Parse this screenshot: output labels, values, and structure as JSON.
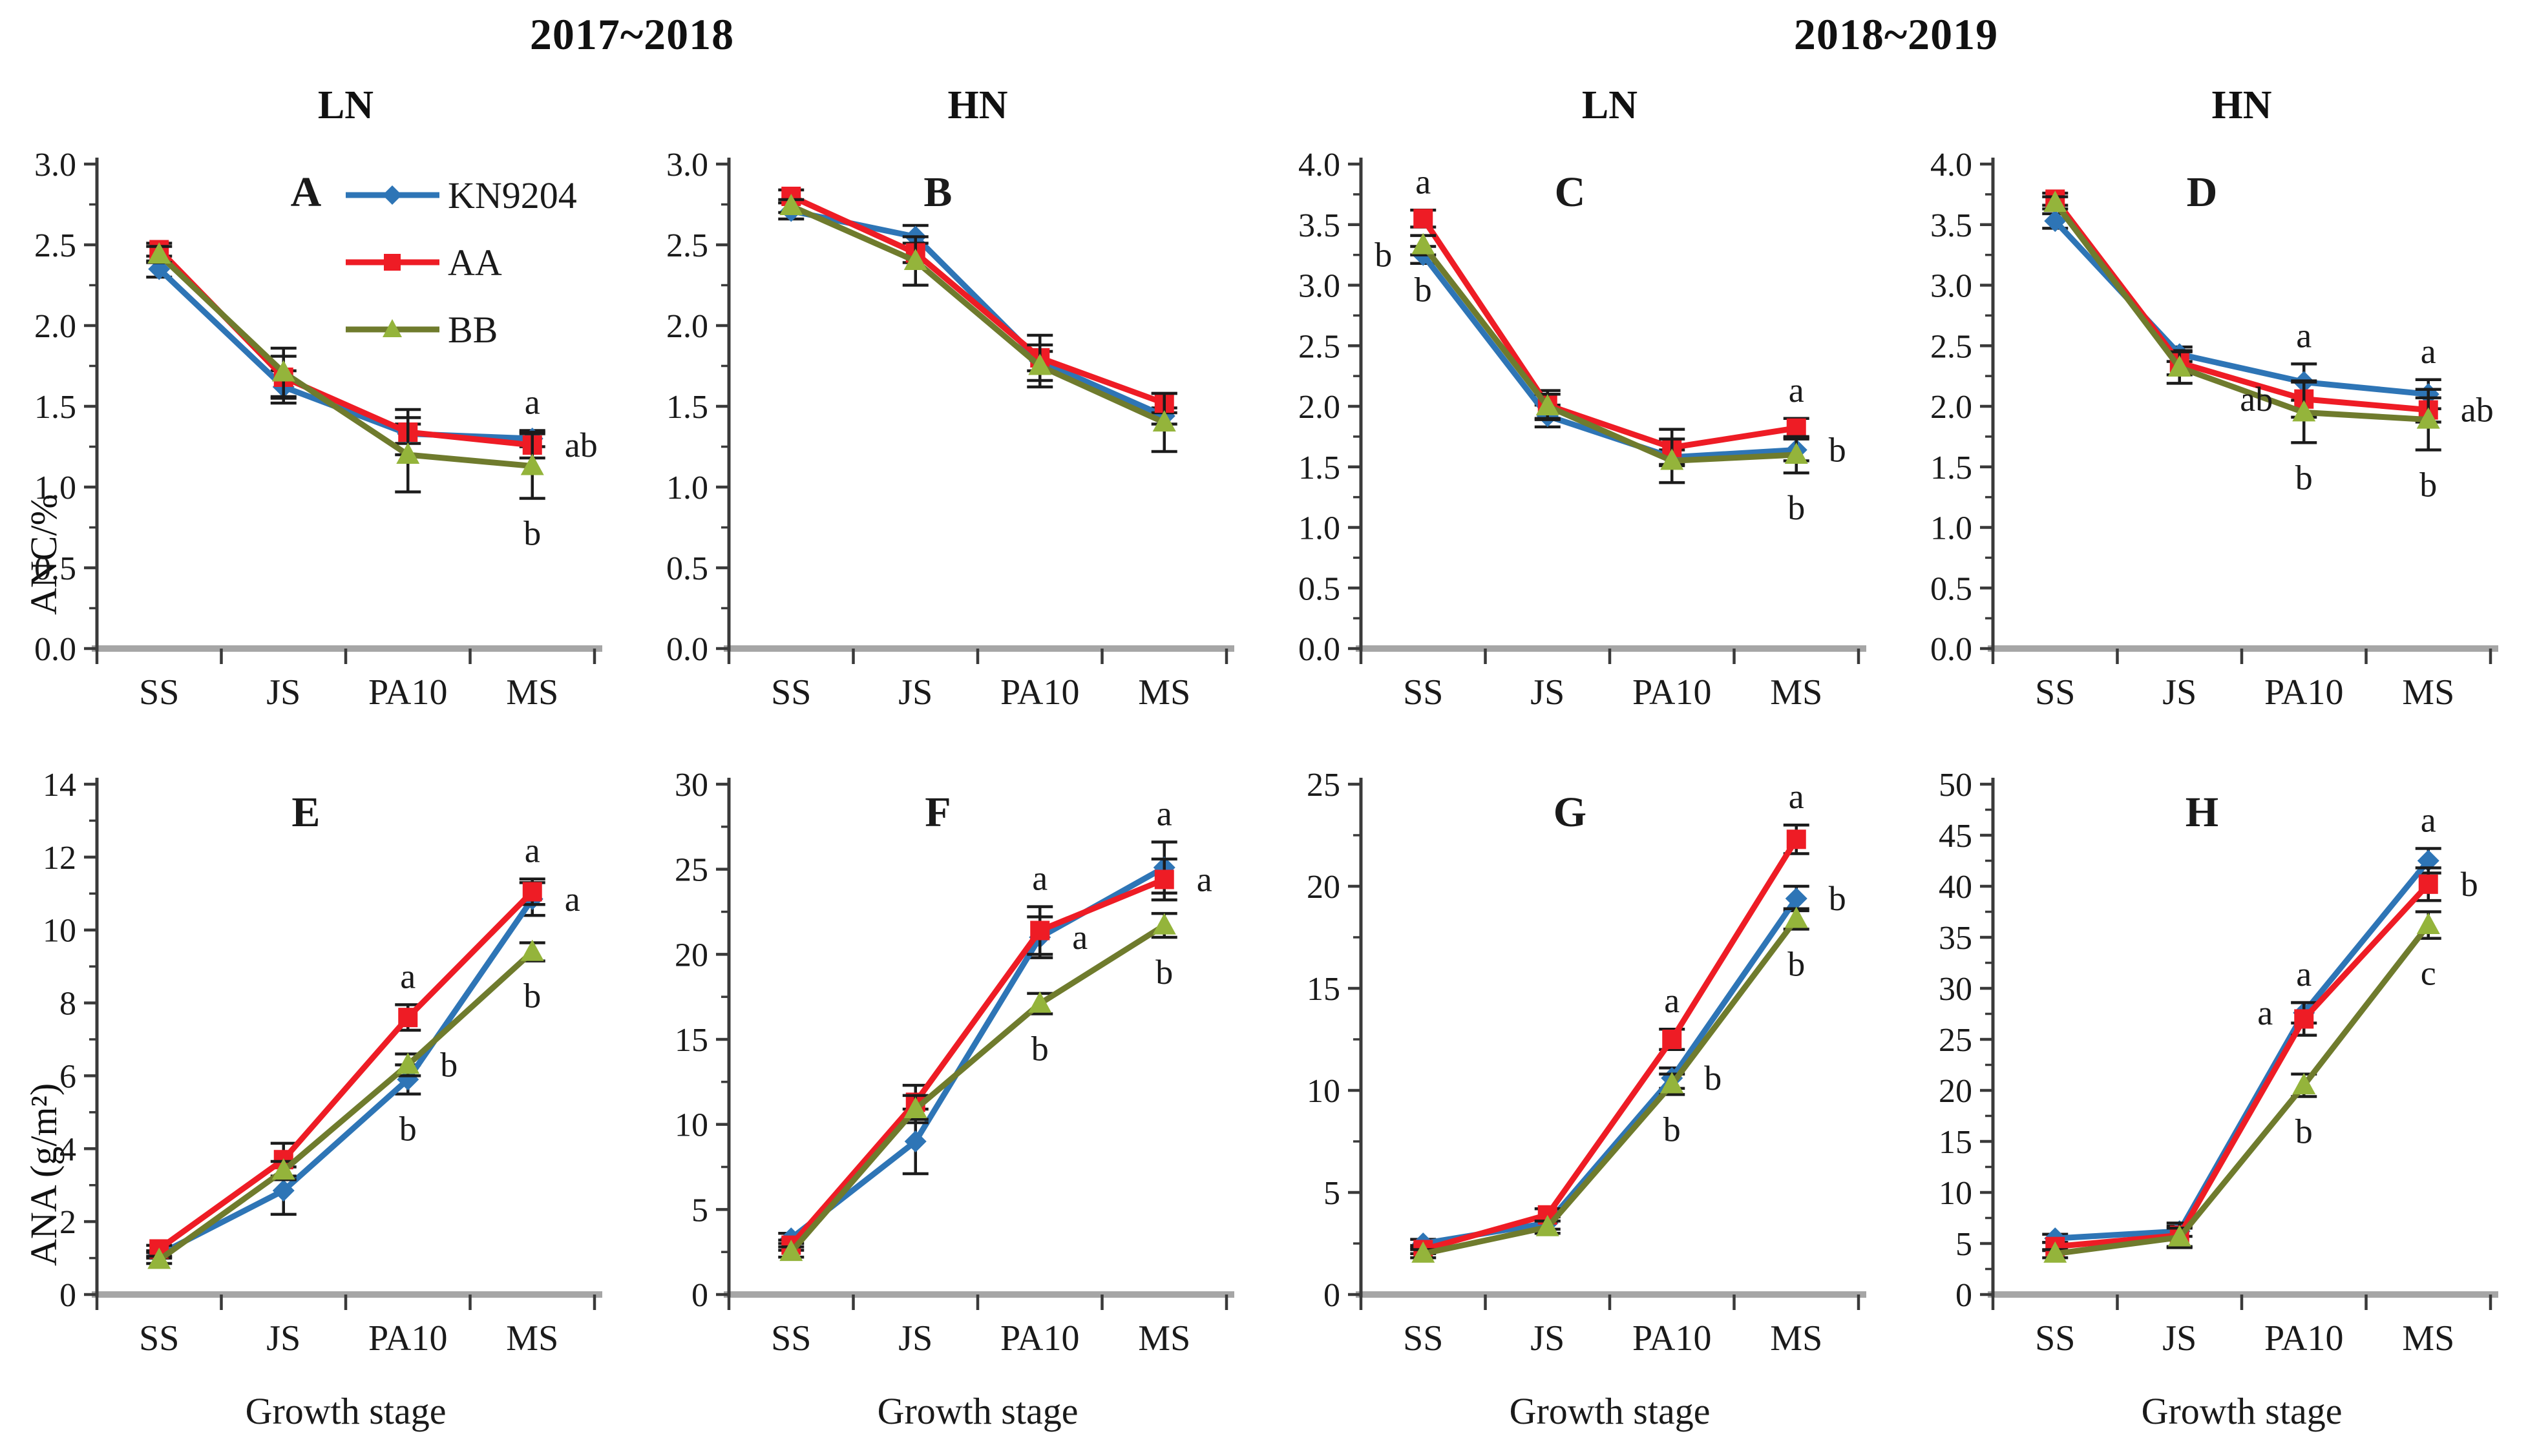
{
  "headers": {
    "year_left": "2017~2018",
    "year_right": "2018~2019"
  },
  "ylabels": {
    "top": "ANC/%",
    "bottom": "ANA (g/m²)"
  },
  "xaxis_label": "Growth stage",
  "legend": {
    "entries": [
      "KN9204",
      "AA",
      "BB"
    ]
  },
  "colors": {
    "KN9204": "#2e75b6",
    "AA": "#ee1c25",
    "BB": "#6f7b2d",
    "BB_marker": "#94b43b",
    "axis": "#3a3a3a",
    "baseline": "#a6a6a6",
    "error_bar": "#1b1b1b",
    "text": "#1a1a1a"
  },
  "series_meta": [
    {
      "name": "KN9204",
      "color": "#2e75b6",
      "marker": "diamond",
      "marker_color": "#2e75b6"
    },
    {
      "name": "AA",
      "color": "#ee1c25",
      "marker": "square",
      "marker_color": "#ee1c25"
    },
    {
      "name": "BB",
      "color": "#6f7b2d",
      "marker": "triangle",
      "marker_color": "#94b43b"
    }
  ],
  "categories": [
    "SS",
    "JS",
    "PA10",
    "MS"
  ],
  "chart_data": [
    {
      "type": "line",
      "label": "A",
      "group": "LN",
      "year": "2017~2018",
      "row": "top",
      "ylabel": "ANC/%",
      "xlabel": null,
      "ylim": [
        0,
        3.0
      ],
      "ytick_step": 0.5,
      "ytick_decimals": 1,
      "legend": true,
      "grid": false,
      "series": [
        {
          "name": "KN9204",
          "values": [
            2.35,
            1.62,
            1.33,
            1.3
          ],
          "errors": [
            0.05,
            0.1,
            0.06,
            0.05
          ]
        },
        {
          "name": "AA",
          "values": [
            2.47,
            1.68,
            1.34,
            1.26
          ],
          "errors": [
            0.04,
            0.13,
            0.14,
            0.08
          ]
        },
        {
          "name": "BB",
          "values": [
            2.44,
            1.71,
            1.2,
            1.13
          ],
          "errors": [
            0.05,
            0.15,
            0.23,
            0.2
          ]
        }
      ],
      "sig_letters": [
        {
          "stage": "MS",
          "series": "KN9204",
          "text": "a",
          "pos": "above"
        },
        {
          "stage": "MS",
          "series": "AA",
          "text": "ab",
          "pos": "right"
        },
        {
          "stage": "MS",
          "series": "BB",
          "text": "b",
          "pos": "below"
        }
      ]
    },
    {
      "type": "line",
      "label": "B",
      "group": "HN",
      "year": "2017~2018",
      "row": "top",
      "ylabel": "ANC/%",
      "xlabel": null,
      "ylim": [
        0,
        3.0
      ],
      "ytick_step": 0.5,
      "ytick_decimals": 1,
      "legend": false,
      "grid": false,
      "series": [
        {
          "name": "KN9204",
          "values": [
            2.71,
            2.55,
            1.78,
            1.44
          ],
          "errors": [
            0.05,
            0.07,
            0.06,
            0.05
          ]
        },
        {
          "name": "AA",
          "values": [
            2.8,
            2.45,
            1.8,
            1.52
          ],
          "errors": [
            0.04,
            0.06,
            0.14,
            0.06
          ]
        },
        {
          "name": "BB",
          "values": [
            2.74,
            2.4,
            1.75,
            1.4
          ],
          "errors": [
            0.04,
            0.15,
            0.13,
            0.18
          ]
        }
      ],
      "sig_letters": []
    },
    {
      "type": "line",
      "label": "C",
      "group": "LN",
      "year": "2018~2019",
      "row": "top",
      "ylabel": "ANC/%",
      "xlabel": null,
      "ylim": [
        0,
        4.0
      ],
      "ytick_step": 0.5,
      "ytick_decimals": 1,
      "legend": false,
      "grid": false,
      "series": [
        {
          "name": "KN9204",
          "values": [
            3.25,
            1.92,
            1.58,
            1.64
          ],
          "errors": [
            0.07,
            0.09,
            0.06,
            0.09
          ]
        },
        {
          "name": "AA",
          "values": [
            3.55,
            2.01,
            1.66,
            1.82
          ],
          "errors": [
            0.07,
            0.12,
            0.15,
            0.08
          ]
        },
        {
          "name": "BB",
          "values": [
            3.33,
            2.0,
            1.55,
            1.6
          ],
          "errors": [
            0.08,
            0.1,
            0.18,
            0.15
          ]
        }
      ],
      "sig_letters": [
        {
          "stage": "SS",
          "series": "AA",
          "text": "a",
          "pos": "above"
        },
        {
          "stage": "SS",
          "series": "KN9204",
          "text": "b",
          "pos": "left"
        },
        {
          "stage": "SS",
          "series": "BB",
          "text": "b",
          "pos": "below"
        },
        {
          "stage": "MS",
          "series": "AA",
          "text": "a",
          "pos": "above"
        },
        {
          "stage": "MS",
          "series": "KN9204",
          "text": "b",
          "pos": "right"
        },
        {
          "stage": "MS",
          "series": "BB",
          "text": "b",
          "pos": "below"
        }
      ]
    },
    {
      "type": "line",
      "label": "D",
      "group": "HN",
      "year": "2018~2019",
      "row": "top",
      "ylabel": "ANC/%",
      "xlabel": null,
      "ylim": [
        0,
        4.0
      ],
      "ytick_step": 0.5,
      "ytick_decimals": 1,
      "legend": false,
      "grid": false,
      "series": [
        {
          "name": "KN9204",
          "values": [
            3.53,
            2.43,
            2.2,
            2.1
          ],
          "errors": [
            0.06,
            0.06,
            0.15,
            0.12
          ]
        },
        {
          "name": "AA",
          "values": [
            3.71,
            2.36,
            2.06,
            1.97
          ],
          "errors": [
            0.05,
            0.1,
            0.15,
            0.1
          ]
        },
        {
          "name": "BB",
          "values": [
            3.68,
            2.32,
            1.95,
            1.89
          ],
          "errors": [
            0.05,
            0.13,
            0.25,
            0.25
          ]
        }
      ],
      "sig_letters": [
        {
          "stage": "PA10",
          "series": "KN9204",
          "text": "a",
          "pos": "above"
        },
        {
          "stage": "PA10",
          "series": "AA",
          "text": "ab",
          "pos": "left"
        },
        {
          "stage": "PA10",
          "series": "BB",
          "text": "b",
          "pos": "below"
        },
        {
          "stage": "MS",
          "series": "KN9204",
          "text": "a",
          "pos": "above"
        },
        {
          "stage": "MS",
          "series": "AA",
          "text": "ab",
          "pos": "right"
        },
        {
          "stage": "MS",
          "series": "BB",
          "text": "b",
          "pos": "below"
        }
      ]
    },
    {
      "type": "line",
      "label": "E",
      "group": "LN",
      "year": "2017~2018",
      "row": "bottom",
      "ylabel": "ANA (g/m²)",
      "xlabel": "Growth stage",
      "ylim": [
        0,
        14
      ],
      "ytick_step": 2,
      "ytick_decimals": 0,
      "legend": false,
      "grid": false,
      "series": [
        {
          "name": "KN9204",
          "values": [
            1.1,
            2.85,
            5.9,
            10.85
          ],
          "errors": [
            0.1,
            0.65,
            0.4,
            0.45
          ]
        },
        {
          "name": "AA",
          "values": [
            1.25,
            3.7,
            7.6,
            11.05
          ],
          "errors": [
            0.1,
            0.45,
            0.35,
            0.35
          ]
        },
        {
          "name": "BB",
          "values": [
            0.95,
            3.4,
            6.3,
            9.4
          ],
          "errors": [
            0.1,
            0.25,
            0.3,
            0.25
          ]
        }
      ],
      "sig_letters": [
        {
          "stage": "PA10",
          "series": "AA",
          "text": "a",
          "pos": "above"
        },
        {
          "stage": "PA10",
          "series": "BB",
          "text": "b",
          "pos": "right"
        },
        {
          "stage": "PA10",
          "series": "KN9204",
          "text": "b",
          "pos": "below"
        },
        {
          "stage": "MS",
          "series": "AA",
          "text": "a",
          "pos": "above"
        },
        {
          "stage": "MS",
          "series": "KN9204",
          "text": "a",
          "pos": "right"
        },
        {
          "stage": "MS",
          "series": "BB",
          "text": "b",
          "pos": "below"
        }
      ]
    },
    {
      "type": "line",
      "label": "F",
      "group": "HN",
      "year": "2017~2018",
      "row": "bottom",
      "ylabel": "ANA (g/m²)",
      "xlabel": "Growth stage",
      "ylim": [
        0,
        30
      ],
      "ytick_step": 5,
      "ytick_decimals": 0,
      "legend": false,
      "grid": false,
      "series": [
        {
          "name": "KN9204",
          "values": [
            3.3,
            9.0,
            21.0,
            25.1
          ],
          "errors": [
            0.3,
            1.9,
            1.2,
            1.5
          ]
        },
        {
          "name": "AA",
          "values": [
            2.9,
            11.3,
            21.4,
            24.4
          ],
          "errors": [
            0.3,
            1.0,
            1.4,
            1.2
          ]
        },
        {
          "name": "BB",
          "values": [
            2.5,
            10.9,
            17.1,
            21.7
          ],
          "errors": [
            0.3,
            0.8,
            0.6,
            0.7
          ]
        }
      ],
      "sig_letters": [
        {
          "stage": "PA10",
          "series": "AA",
          "text": "a",
          "pos": "above"
        },
        {
          "stage": "PA10",
          "series": "KN9204",
          "text": "a",
          "pos": "right"
        },
        {
          "stage": "PA10",
          "series": "BB",
          "text": "b",
          "pos": "below"
        },
        {
          "stage": "MS",
          "series": "KN9204",
          "text": "a",
          "pos": "above"
        },
        {
          "stage": "MS",
          "series": "AA",
          "text": "a",
          "pos": "right"
        },
        {
          "stage": "MS",
          "series": "BB",
          "text": "b",
          "pos": "below"
        }
      ]
    },
    {
      "type": "line",
      "label": "G",
      "group": "LN",
      "year": "2018~2019",
      "row": "bottom",
      "ylabel": "ANA (g/m²)",
      "xlabel": "Growth stage",
      "ylim": [
        0,
        25
      ],
      "ytick_step": 5,
      "ytick_decimals": 0,
      "legend": false,
      "grid": false,
      "series": [
        {
          "name": "KN9204",
          "values": [
            2.5,
            3.5,
            10.6,
            19.4
          ],
          "errors": [
            0.2,
            0.3,
            0.5,
            0.6
          ]
        },
        {
          "name": "AA",
          "values": [
            2.2,
            3.9,
            12.5,
            22.3
          ],
          "errors": [
            0.2,
            0.3,
            0.5,
            0.7
          ]
        },
        {
          "name": "BB",
          "values": [
            2.0,
            3.3,
            10.3,
            18.4
          ],
          "errors": [
            0.2,
            0.3,
            0.5,
            0.5
          ]
        }
      ],
      "sig_letters": [
        {
          "stage": "PA10",
          "series": "AA",
          "text": "a",
          "pos": "above"
        },
        {
          "stage": "PA10",
          "series": "KN9204",
          "text": "b",
          "pos": "right"
        },
        {
          "stage": "PA10",
          "series": "BB",
          "text": "b",
          "pos": "below"
        },
        {
          "stage": "MS",
          "series": "AA",
          "text": "a",
          "pos": "above"
        },
        {
          "stage": "MS",
          "series": "KN9204",
          "text": "b",
          "pos": "right"
        },
        {
          "stage": "MS",
          "series": "BB",
          "text": "b",
          "pos": "below"
        }
      ]
    },
    {
      "type": "line",
      "label": "H",
      "group": "HN",
      "year": "2018~2019",
      "row": "bottom",
      "ylabel": "ANA (g/m²)",
      "xlabel": "Growth stage",
      "ylim": [
        0,
        50
      ],
      "ytick_step": 5,
      "ytick_decimals": 0,
      "legend": false,
      "grid": false,
      "series": [
        {
          "name": "KN9204",
          "values": [
            5.5,
            6.2,
            27.6,
            42.5
          ],
          "errors": [
            0.4,
            0.5,
            1.0,
            1.2
          ]
        },
        {
          "name": "AA",
          "values": [
            4.7,
            5.8,
            27.0,
            40.2
          ],
          "errors": [
            0.4,
            1.2,
            1.6,
            1.6
          ]
        },
        {
          "name": "BB",
          "values": [
            4.0,
            5.6,
            20.5,
            36.2
          ],
          "errors": [
            0.4,
            0.9,
            1.1,
            1.3
          ]
        }
      ],
      "sig_letters": [
        {
          "stage": "PA10",
          "series": "AA",
          "text": "a",
          "pos": "above"
        },
        {
          "stage": "PA10",
          "series": "KN9204",
          "text": "a",
          "pos": "left"
        },
        {
          "stage": "PA10",
          "series": "BB",
          "text": "b",
          "pos": "below"
        },
        {
          "stage": "MS",
          "series": "KN9204",
          "text": "a",
          "pos": "above"
        },
        {
          "stage": "MS",
          "series": "AA",
          "text": "b",
          "pos": "right"
        },
        {
          "stage": "MS",
          "series": "BB",
          "text": "c",
          "pos": "below"
        }
      ]
    }
  ]
}
